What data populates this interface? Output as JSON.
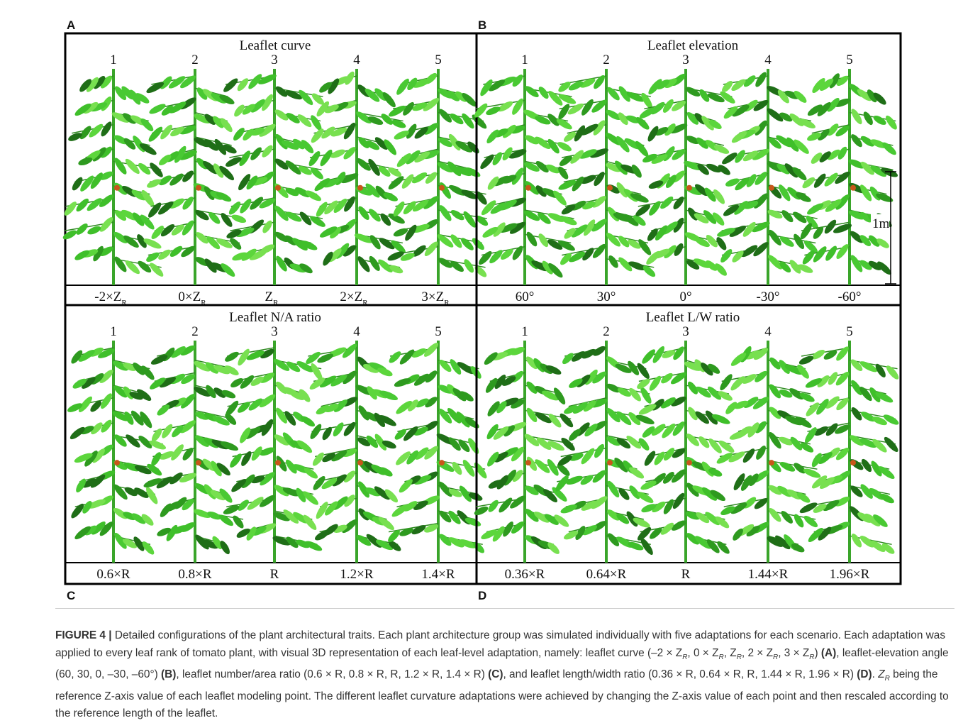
{
  "figure": {
    "panels": [
      {
        "letter": "A",
        "title": "Leaflet curve",
        "numbers": [
          "1",
          "2",
          "3",
          "4",
          "5"
        ],
        "labels": [
          {
            "text": "-2×Z",
            "sub": "R"
          },
          {
            "text": "0×Z",
            "sub": "R"
          },
          {
            "text": "Z",
            "sub": "R"
          },
          {
            "text": "2×Z",
            "sub": "R"
          },
          {
            "text": "3×Z",
            "sub": "R"
          }
        ]
      },
      {
        "letter": "B",
        "title": "Leaflet elevation",
        "numbers": [
          "1",
          "2",
          "3",
          "4",
          "5"
        ],
        "labels": [
          "60°",
          "30°",
          "0°",
          "-30°",
          "-60°"
        ]
      },
      {
        "letter": "C",
        "title": "Leaflet N/A ratio",
        "numbers": [
          "1",
          "2",
          "3",
          "4",
          "5"
        ],
        "labels": [
          "0.6×R",
          "0.8×R",
          "R",
          "1.2×R",
          "1.4×R"
        ]
      },
      {
        "letter": "D",
        "title": "Leaflet L/W ratio",
        "numbers": [
          "1",
          "2",
          "3",
          "4",
          "5"
        ],
        "labels": [
          "0.36×R",
          "0.64×R",
          "R",
          "1.44×R",
          "1.96×R"
        ]
      }
    ],
    "scale_bar": "1m"
  },
  "caption": {
    "runs": [
      "FIGURE 4 |",
      " Detailed configurations of the plant architectural traits. Each plant architecture group was simulated individually with five adaptations for each scenario. Each adaptation was applied to every leaf rank of tomato plant, with visual 3D representation of each leaf-level adaptation, namely: leaflet curve (–2 × Z",
      "R",
      ", 0 × Z",
      "R",
      ", Z",
      "R",
      ", 2 × Z",
      "R",
      ", 3 × Z",
      "R",
      ") ",
      "(A)",
      ", leaflet-elevation angle (60, 30, 0, –30, –60°) ",
      "(B)",
      ", leaflet number/area ratio (0.6 × R, 0.8 × R, R, 1.2 × R, 1.4 × R) ",
      "(C)",
      ", and leaflet length/width ratio (0.36 × R, 0.64 × R, R, 1.44 × R, 1.96 × R) ",
      "(D)",
      ". ",
      "Z",
      "R",
      " being the reference Z-axis value of each leaflet modeling point. The different leaflet curvature adaptations were achieved by changing the Z-axis value of each point and then rescaled according to the reference length of the leaflet."
    ]
  }
}
